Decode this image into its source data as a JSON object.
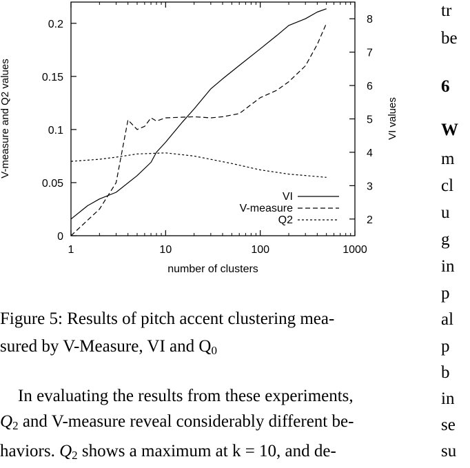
{
  "chart_data": {
    "type": "line",
    "x_scale": "log",
    "x_range": [
      1,
      1000
    ],
    "y_left_range": [
      0,
      0.22
    ],
    "y_right_range": [
      1.5,
      8.5
    ],
    "xlabel": "number of clusters",
    "ylabel_left": "V-measure and Q2 values",
    "ylabel_right": "VI values",
    "x_ticks": [
      "1",
      "10",
      "100",
      "1000"
    ],
    "y_left_ticks": [
      "0",
      "0.05",
      "0.1",
      "0.15",
      "0.2"
    ],
    "y_right_ticks": [
      "2",
      "3",
      "4",
      "5",
      "6",
      "7",
      "8"
    ],
    "legend_position": "bottom-right",
    "series": [
      {
        "name": "VI",
        "axis": "right",
        "style": "solid",
        "x": [
          1,
          1.5,
          2,
          3,
          5,
          7,
          8,
          10,
          15,
          20,
          30,
          40,
          60,
          100,
          150,
          200,
          300,
          400,
          500
        ],
        "y": [
          2.0,
          2.4,
          2.6,
          2.8,
          3.3,
          3.7,
          4.0,
          4.3,
          4.9,
          5.3,
          5.9,
          6.2,
          6.6,
          7.1,
          7.5,
          7.8,
          8.0,
          8.2,
          8.3
        ]
      },
      {
        "name": "V-measure",
        "axis": "left",
        "style": "dashed",
        "x": [
          1,
          2,
          3,
          4,
          5,
          6,
          7,
          8,
          10,
          20,
          30,
          40,
          60,
          100,
          150,
          200,
          300,
          400,
          500
        ],
        "y": [
          0.0,
          0.025,
          0.05,
          0.109,
          0.1,
          0.103,
          0.111,
          0.108,
          0.111,
          0.112,
          0.111,
          0.112,
          0.115,
          0.13,
          0.137,
          0.145,
          0.16,
          0.18,
          0.2
        ]
      },
      {
        "name": "Q2",
        "axis": "left",
        "style": "dotted",
        "x": [
          1,
          2,
          3,
          5,
          10,
          20,
          50,
          100,
          200,
          500
        ],
        "y": [
          0.07,
          0.072,
          0.074,
          0.077,
          0.078,
          0.075,
          0.068,
          0.062,
          0.058,
          0.055
        ]
      }
    ]
  },
  "caption": {
    "line1": "Figure 5:  Results of pitch accent clustering mea-",
    "line2": "sured by V-Measure, VI and Q",
    "line2_sub": "0"
  },
  "body_text": {
    "line1": "In evaluating the results from these experiments,",
    "line2_q": "Q",
    "line2_sub": "2",
    "line2_rest": " and V-measure reveal considerably different be-",
    "line3_pre": "haviors.  ",
    "line3_q": "Q",
    "line3_sub": "2",
    "line3_rest": " shows a maximum at k = 10, and de-"
  },
  "right_column": [
    "tr",
    "be",
    "6",
    "W",
    "m",
    "cl",
    "u",
    "g",
    "in",
    "p",
    "al",
    "p",
    "b",
    "in",
    "se",
    "su"
  ]
}
